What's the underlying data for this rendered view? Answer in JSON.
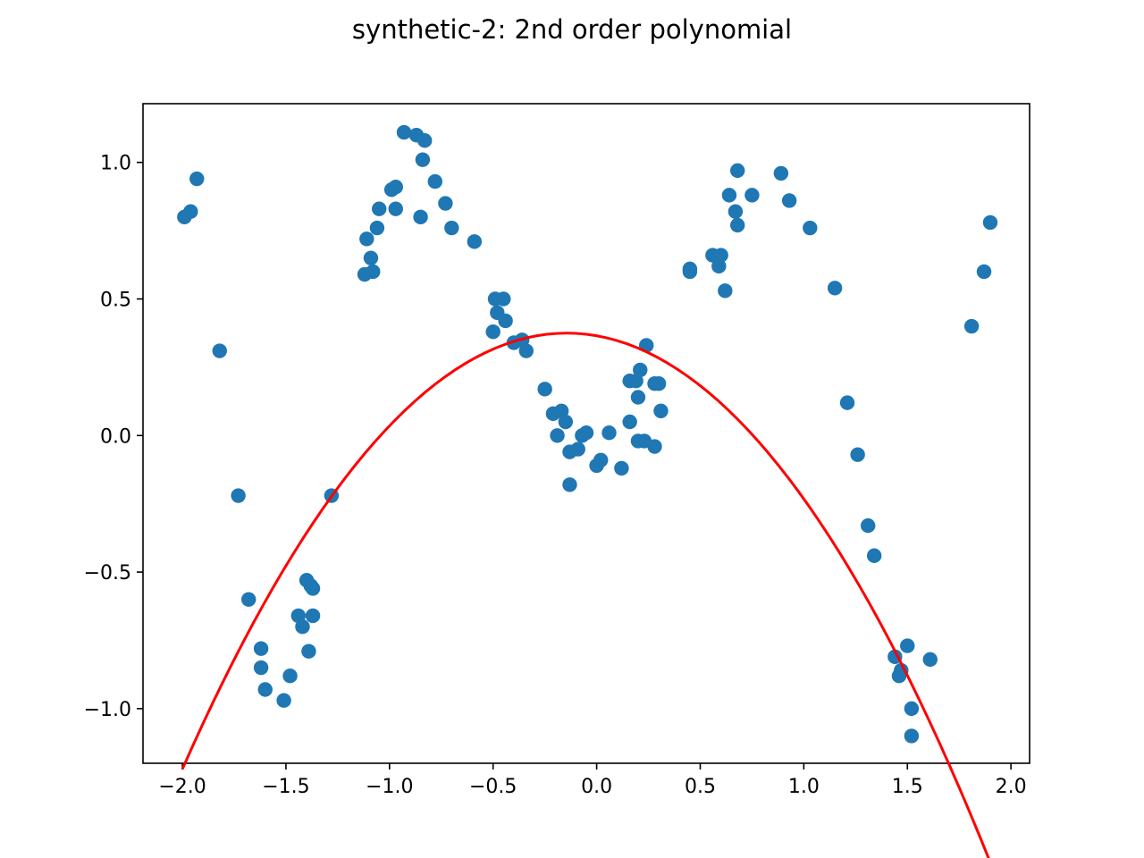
{
  "chart_data": {
    "type": "scatter",
    "title": "synthetic-2: 2nd order polynomial",
    "xlabel": "",
    "ylabel": "",
    "xlim": [
      -2.19,
      2.09
    ],
    "ylim": [
      -1.2,
      1.215
    ],
    "grid": false,
    "x_ticks": [
      {
        "value": -2.0,
        "label": "−2.0"
      },
      {
        "value": -1.5,
        "label": "−1.5"
      },
      {
        "value": -1.0,
        "label": "−1.0"
      },
      {
        "value": -0.5,
        "label": "−0.5"
      },
      {
        "value": 0.0,
        "label": "0.0"
      },
      {
        "value": 0.5,
        "label": "0.5"
      },
      {
        "value": 1.0,
        "label": "1.0"
      },
      {
        "value": 1.5,
        "label": "1.5"
      },
      {
        "value": 2.0,
        "label": "2.0"
      }
    ],
    "y_ticks": [
      {
        "value": -1.0,
        "label": "−1.0"
      },
      {
        "value": -0.5,
        "label": "−0.5"
      },
      {
        "value": 0.0,
        "label": "0.0"
      },
      {
        "value": 0.5,
        "label": "0.5"
      },
      {
        "value": 1.0,
        "label": "1.0"
      }
    ],
    "series": [
      {
        "type": "scatter",
        "color": "#1f77b4",
        "points": [
          [
            -1.99,
            0.8
          ],
          [
            -1.96,
            0.82
          ],
          [
            -1.93,
            0.94
          ],
          [
            -1.82,
            0.31
          ],
          [
            -1.73,
            -0.22
          ],
          [
            -1.68,
            -0.6
          ],
          [
            -1.62,
            -0.78
          ],
          [
            -1.62,
            -0.85
          ],
          [
            -1.6,
            -0.93
          ],
          [
            -1.51,
            -0.97
          ],
          [
            -1.48,
            -0.88
          ],
          [
            -1.44,
            -0.66
          ],
          [
            -1.42,
            -0.7
          ],
          [
            -1.4,
            -0.53
          ],
          [
            -1.39,
            -0.79
          ],
          [
            -1.38,
            -0.55
          ],
          [
            -1.37,
            -0.56
          ],
          [
            -1.37,
            -0.66
          ],
          [
            -1.28,
            -0.22
          ],
          [
            -1.12,
            0.59
          ],
          [
            -1.11,
            0.72
          ],
          [
            -1.09,
            0.65
          ],
          [
            -1.08,
            0.6
          ],
          [
            -1.06,
            0.76
          ],
          [
            -1.05,
            0.83
          ],
          [
            -0.99,
            0.9
          ],
          [
            -0.97,
            0.91
          ],
          [
            -0.97,
            0.83
          ],
          [
            -0.93,
            1.11
          ],
          [
            -0.87,
            1.1
          ],
          [
            -0.85,
            0.8
          ],
          [
            -0.84,
            1.01
          ],
          [
            -0.83,
            1.08
          ],
          [
            -0.78,
            0.93
          ],
          [
            -0.73,
            0.85
          ],
          [
            -0.7,
            0.76
          ],
          [
            -0.59,
            0.71
          ],
          [
            -0.5,
            0.38
          ],
          [
            -0.49,
            0.5
          ],
          [
            -0.48,
            0.45
          ],
          [
            -0.45,
            0.5
          ],
          [
            -0.44,
            0.42
          ],
          [
            -0.4,
            0.34
          ],
          [
            -0.36,
            0.35
          ],
          [
            -0.34,
            0.31
          ],
          [
            -0.25,
            0.17
          ],
          [
            -0.21,
            0.08
          ],
          [
            -0.19,
            0.0
          ],
          [
            -0.17,
            0.09
          ],
          [
            -0.15,
            0.05
          ],
          [
            -0.13,
            -0.18
          ],
          [
            -0.13,
            -0.06
          ],
          [
            -0.09,
            -0.05
          ],
          [
            -0.07,
            0.0
          ],
          [
            -0.05,
            0.01
          ],
          [
            0.0,
            -0.11
          ],
          [
            0.02,
            -0.09
          ],
          [
            0.06,
            0.01
          ],
          [
            0.12,
            -0.12
          ],
          [
            0.16,
            0.2
          ],
          [
            0.16,
            0.05
          ],
          [
            0.19,
            0.2
          ],
          [
            0.2,
            0.14
          ],
          [
            0.2,
            -0.02
          ],
          [
            0.21,
            0.24
          ],
          [
            0.23,
            -0.02
          ],
          [
            0.24,
            0.33
          ],
          [
            0.28,
            0.19
          ],
          [
            0.28,
            -0.04
          ],
          [
            0.3,
            0.19
          ],
          [
            0.31,
            0.09
          ],
          [
            0.45,
            0.61
          ],
          [
            0.45,
            0.6
          ],
          [
            0.56,
            0.66
          ],
          [
            0.59,
            0.62
          ],
          [
            0.6,
            0.66
          ],
          [
            0.62,
            0.53
          ],
          [
            0.64,
            0.88
          ],
          [
            0.67,
            0.82
          ],
          [
            0.68,
            0.97
          ],
          [
            0.68,
            0.77
          ],
          [
            0.75,
            0.88
          ],
          [
            0.89,
            0.96
          ],
          [
            0.93,
            0.86
          ],
          [
            1.03,
            0.76
          ],
          [
            1.15,
            0.54
          ],
          [
            1.21,
            0.12
          ],
          [
            1.26,
            -0.07
          ],
          [
            1.31,
            -0.33
          ],
          [
            1.34,
            -0.44
          ],
          [
            1.44,
            -0.81
          ],
          [
            1.46,
            -0.88
          ],
          [
            1.47,
            -0.86
          ],
          [
            1.5,
            -0.77
          ],
          [
            1.52,
            -1.0
          ],
          [
            1.52,
            -1.1
          ],
          [
            1.61,
            -0.82
          ],
          [
            1.81,
            0.4
          ],
          [
            1.87,
            0.6
          ],
          [
            1.9,
            0.78
          ]
        ]
      },
      {
        "type": "line",
        "color": "#ff0000",
        "x_range": [
          -2.0,
          1.9
        ],
        "coefficients": [
          0.3653,
          -0.1338,
          -0.4636
        ]
      }
    ]
  }
}
